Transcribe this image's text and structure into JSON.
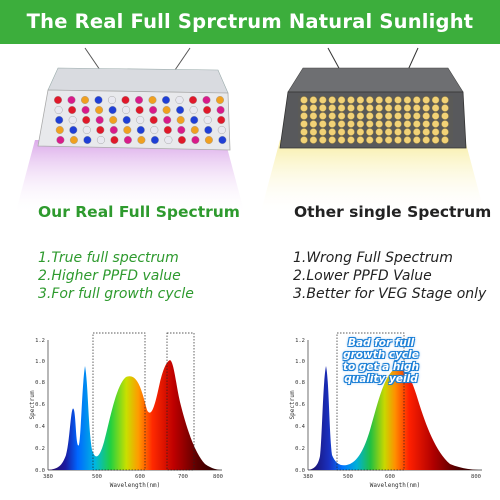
{
  "banner": {
    "title": "The Real Full Sprctrum Natural Sunlight"
  },
  "left_panel": {
    "heading": "Our Real Full Spectrum",
    "features": [
      "1.True full spectrum",
      "2.Higher PPFD value",
      "3.For full growth cycle"
    ],
    "heading_color": "#2e9a2e",
    "glow_color": "#e6c0ef"
  },
  "right_panel": {
    "heading": "Other single Spectrum",
    "features": [
      "1.Wrong Full Spectrum",
      "2.Lower PPFD Value",
      "3.Better for VEG Stage only"
    ],
    "heading_color": "#222222",
    "glow_color": "#f8f0b0",
    "callout": [
      "Bad for full",
      "growth cycle",
      "to get a high",
      "quality yeild"
    ]
  },
  "left_chart": {
    "ylabel": "Spectrum",
    "xlabel": "Wavelength(nm)",
    "x_ticks": [
      "380",
      "500",
      "600",
      "700",
      "800"
    ],
    "y_ticks": [
      "0.0",
      "0.2",
      "0.4",
      "0.6",
      "0.8",
      "1.0",
      "1.2"
    ]
  },
  "right_chart": {
    "ylabel": "Spectrum",
    "xlabel": "Wavelength(nm)",
    "x_ticks": [
      "380",
      "500",
      "600",
      "800"
    ],
    "y_ticks": [
      "0.0",
      "0.2",
      "0.4",
      "0.6",
      "0.8",
      "1.0",
      "1.2"
    ]
  },
  "icons": {
    "left_light": "full-spectrum-led-panel-icon",
    "right_light": "single-spectrum-led-panel-icon"
  },
  "colors": {
    "banner": "#3cae3c",
    "callout": "#1b7fd6"
  }
}
